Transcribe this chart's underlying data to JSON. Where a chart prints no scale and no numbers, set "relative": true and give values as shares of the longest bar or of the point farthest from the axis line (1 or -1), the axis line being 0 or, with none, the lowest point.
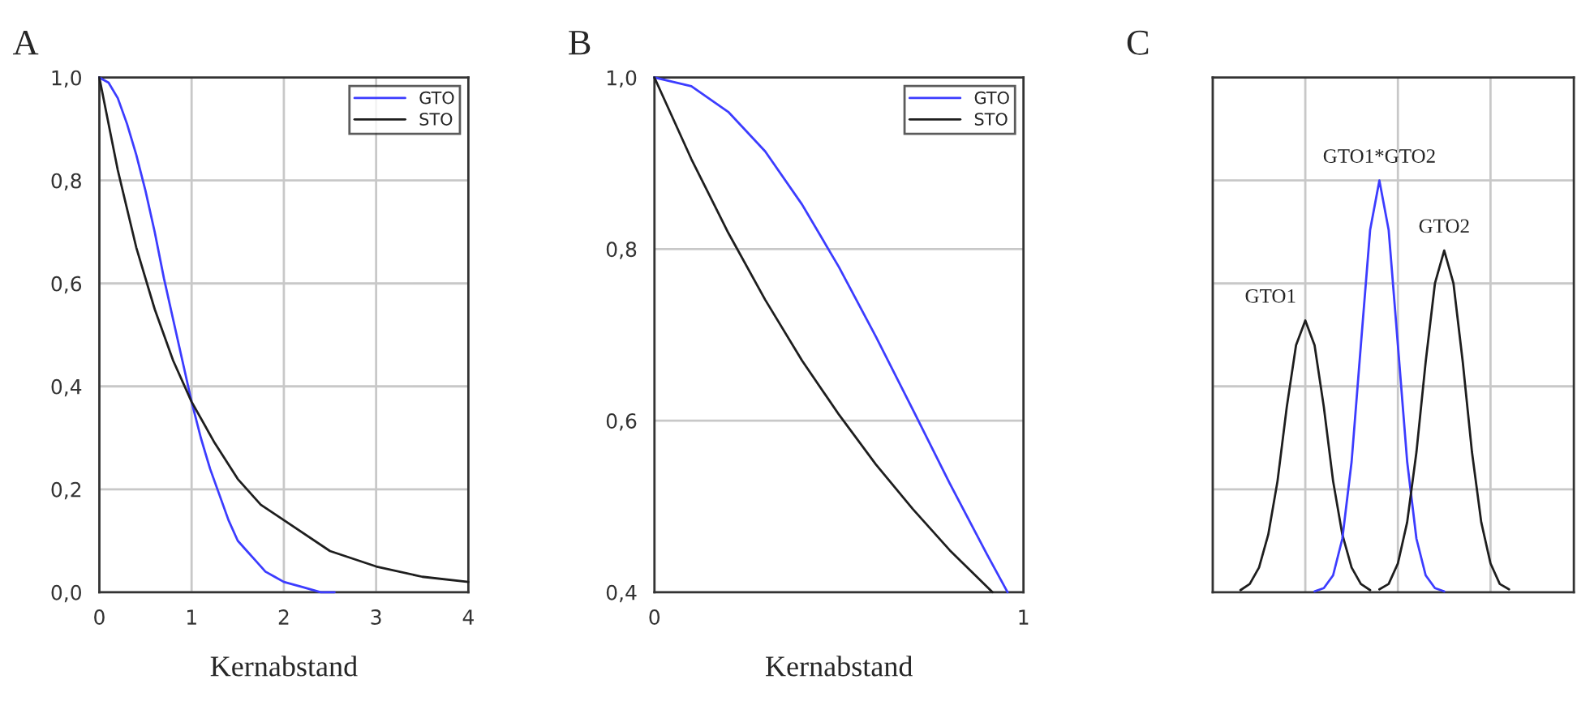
{
  "chart_data": [
    {
      "type": "line",
      "title": "A",
      "xlabel": "Kernabstand",
      "xlim": [
        0,
        4
      ],
      "xticks": [
        0,
        1,
        2,
        3,
        4
      ],
      "ylim": [
        0,
        1
      ],
      "yticks": [
        {
          "value": 0,
          "label": "0,0"
        },
        {
          "value": 0.2,
          "label": "0,2"
        },
        {
          "value": 0.4,
          "label": "0,4"
        },
        {
          "value": 0.6,
          "label": "0,6"
        },
        {
          "value": 0.8,
          "label": "0,8"
        },
        {
          "value": 1,
          "label": "1,0"
        }
      ],
      "grid": true,
      "legend": "top right",
      "series": [
        {
          "name": "GTO",
          "color": "#3c3cff",
          "x": [
            0,
            0.1,
            0.2,
            0.3,
            0.4,
            0.5,
            0.6,
            0.7,
            0.8,
            0.9,
            1.0,
            1.1,
            1.2,
            1.3,
            1.4,
            1.5,
            1.6,
            1.7,
            1.8,
            1.9,
            2.0,
            2.2,
            2.4,
            2.55
          ],
          "values": [
            1.0,
            0.99,
            0.96,
            0.91,
            0.85,
            0.78,
            0.7,
            0.61,
            0.53,
            0.45,
            0.37,
            0.3,
            0.24,
            0.19,
            0.14,
            0.1,
            0.08,
            0.06,
            0.04,
            0.03,
            0.02,
            0.01,
            0.0,
            0.0
          ]
        },
        {
          "name": "STO",
          "color": "#1e1e1e",
          "x": [
            0,
            0.2,
            0.4,
            0.6,
            0.8,
            1.0,
            1.25,
            1.5,
            1.75,
            2.0,
            2.5,
            3.0,
            3.5,
            4.0
          ],
          "values": [
            1.0,
            0.82,
            0.67,
            0.55,
            0.45,
            0.37,
            0.29,
            0.22,
            0.17,
            0.14,
            0.08,
            0.05,
            0.03,
            0.02
          ]
        }
      ]
    },
    {
      "type": "line",
      "title": "B",
      "xlabel": "Kernabstand",
      "xlim": [
        0,
        1
      ],
      "xticks": [
        0,
        1
      ],
      "ylim": [
        0.4,
        1
      ],
      "yticks": [
        {
          "value": 0.4,
          "label": "0,4"
        },
        {
          "value": 0.6,
          "label": "0,6"
        },
        {
          "value": 0.8,
          "label": "0,8"
        },
        {
          "value": 1,
          "label": "1,0"
        }
      ],
      "grid": "y",
      "legend": "top right",
      "series": [
        {
          "name": "GTO",
          "color": "#3c3cff",
          "x": [
            0,
            0.1,
            0.2,
            0.3,
            0.4,
            0.5,
            0.6,
            0.7,
            0.8,
            0.9,
            0.957
          ],
          "values": [
            1.0,
            0.99,
            0.96,
            0.914,
            0.852,
            0.779,
            0.698,
            0.613,
            0.527,
            0.445,
            0.4
          ]
        },
        {
          "name": "STO",
          "color": "#1e1e1e",
          "x": [
            0,
            0.1,
            0.2,
            0.3,
            0.4,
            0.5,
            0.6,
            0.7,
            0.8,
            0.916
          ],
          "values": [
            1.0,
            0.905,
            0.819,
            0.741,
            0.67,
            0.607,
            0.549,
            0.497,
            0.449,
            0.4
          ]
        }
      ]
    },
    {
      "type": "line",
      "title": "C",
      "relative": true,
      "grid": true,
      "categories": [
        null,
        null,
        null,
        null,
        null,
        null,
        null,
        null,
        null,
        null,
        null,
        null,
        null,
        null,
        null,
        null,
        null,
        null,
        null,
        null,
        null,
        null,
        null,
        null,
        null,
        null,
        null,
        null,
        null,
        null,
        null,
        null,
        null,
        null,
        null,
        null,
        null,
        null,
        null,
        null
      ],
      "annotations": [
        "GTO1",
        "GTO1*GTO2",
        "GTO2"
      ],
      "series": [
        {
          "color": "#1e1e1e",
          "values": [
            null,
            null,
            null,
            0.005,
            0.02,
            0.06,
            0.14,
            0.27,
            0.45,
            0.6,
            0.66,
            0.6,
            0.45,
            0.27,
            0.14,
            0.06,
            0.02,
            0.005,
            null,
            null,
            null,
            null,
            null,
            null,
            null,
            null,
            null,
            null,
            null,
            null,
            null,
            null,
            null,
            null,
            null,
            null,
            null,
            null,
            null,
            null
          ]
        },
        {
          "color": "#3c3cff",
          "values": [
            null,
            null,
            null,
            null,
            null,
            null,
            null,
            null,
            null,
            null,
            null,
            0.002,
            0.01,
            0.041,
            0.13,
            0.317,
            0.6,
            0.88,
            1.0,
            0.88,
            0.6,
            0.317,
            0.13,
            0.041,
            0.01,
            0.002,
            null,
            null,
            null,
            null,
            null,
            null,
            null,
            null,
            null,
            null,
            null,
            null,
            null,
            null
          ]
        },
        {
          "color": "#1e1e1e",
          "values": [
            null,
            null,
            null,
            null,
            null,
            null,
            null,
            null,
            null,
            null,
            null,
            null,
            null,
            null,
            null,
            null,
            null,
            null,
            0.007,
            0.02,
            0.07,
            0.17,
            0.34,
            0.56,
            0.75,
            0.83,
            0.75,
            0.56,
            0.34,
            0.17,
            0.07,
            0.02,
            0.007,
            null,
            null,
            null,
            null,
            null,
            null,
            null
          ]
        }
      ]
    }
  ]
}
